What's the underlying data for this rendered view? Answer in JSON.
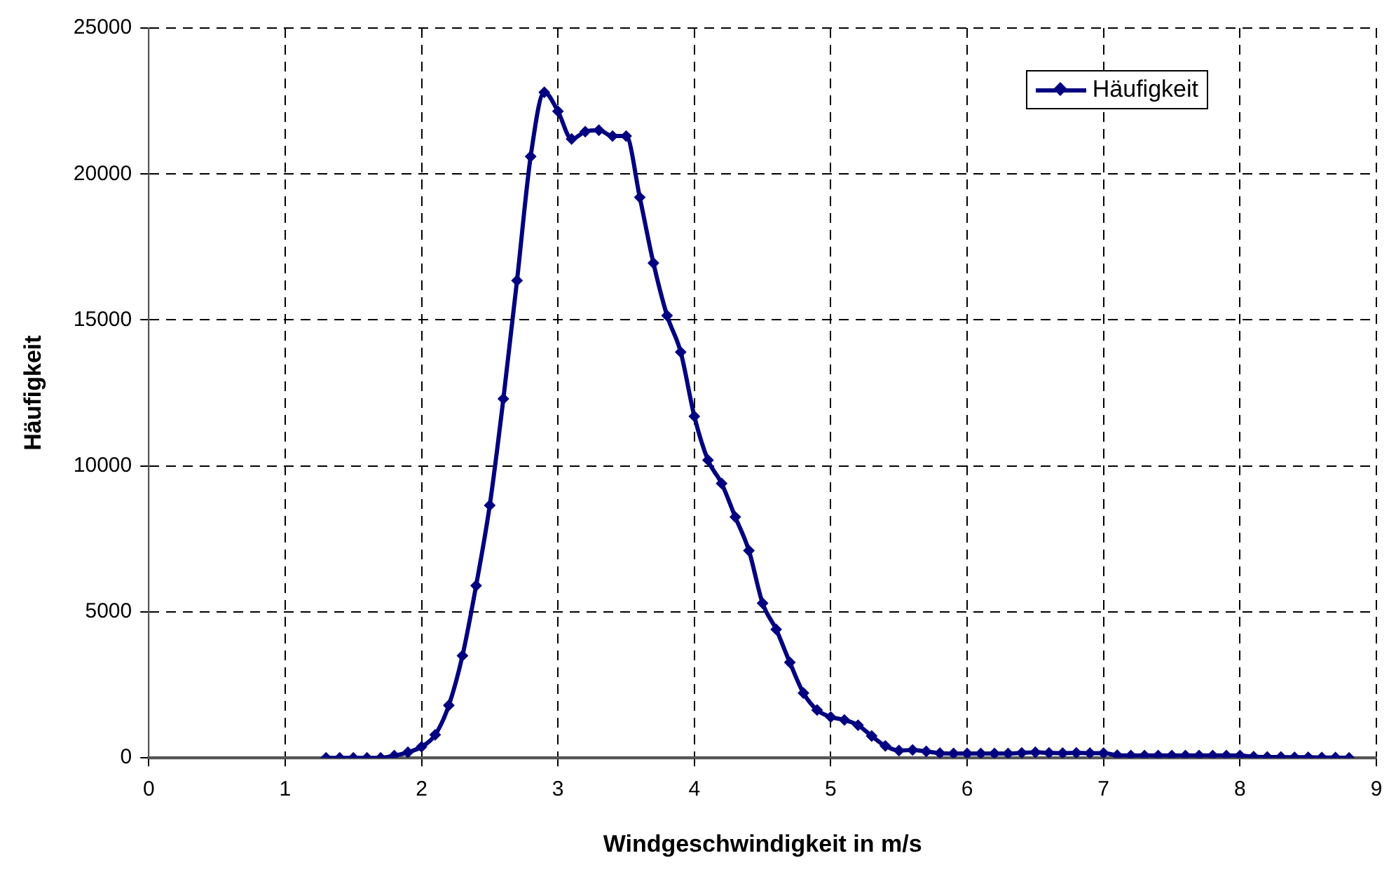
{
  "chart_data": {
    "type": "line",
    "xlabel": "Windgeschwindigkeit in m/s",
    "ylabel": "Häufigkeit",
    "x": [
      1.3,
      1.4,
      1.5,
      1.6,
      1.7,
      1.8,
      1.9,
      2.0,
      2.1,
      2.2,
      2.3,
      2.4,
      2.5,
      2.6,
      2.7,
      2.8,
      2.9,
      3.0,
      3.1,
      3.2,
      3.3,
      3.4,
      3.5,
      3.6,
      3.7,
      3.8,
      3.9,
      4.0,
      4.1,
      4.2,
      4.3,
      4.4,
      4.5,
      4.6,
      4.7,
      4.8,
      4.9,
      5.0,
      5.1,
      5.2,
      5.3,
      5.4,
      5.5,
      5.6,
      5.7,
      5.8,
      5.9,
      6.0,
      6.1,
      6.2,
      6.3,
      6.4,
      6.5,
      6.6,
      6.7,
      6.8,
      6.9,
      7.0,
      7.1,
      7.2,
      7.3,
      7.4,
      7.5,
      7.6,
      7.7,
      7.8,
      7.9,
      8.0,
      8.1,
      8.2,
      8.3,
      8.4,
      8.5,
      8.6,
      8.7,
      8.8
    ],
    "series": [
      {
        "name": "Häufigkeit",
        "color": "#000080",
        "values": [
          0,
          0,
          0,
          0,
          0,
          80,
          190,
          380,
          790,
          1800,
          3500,
          5900,
          8650,
          12300,
          16350,
          20600,
          22800,
          22150,
          21200,
          21450,
          21500,
          21300,
          21300,
          19200,
          16950,
          15150,
          13900,
          11700,
          10200,
          9400,
          8250,
          7100,
          5300,
          4400,
          3270,
          2220,
          1640,
          1400,
          1300,
          1120,
          750,
          410,
          250,
          270,
          220,
          160,
          150,
          150,
          150,
          150,
          150,
          170,
          190,
          170,
          160,
          170,
          160,
          160,
          90,
          80,
          80,
          80,
          80,
          80,
          80,
          80,
          80,
          80,
          40,
          30,
          30,
          20,
          20,
          10,
          10,
          0
        ]
      }
    ],
    "xlim": [
      0,
      9
    ],
    "xticks": [
      0,
      1,
      2,
      3,
      4,
      5,
      6,
      7,
      8,
      9
    ],
    "ylim": [
      0,
      25000
    ],
    "yticks": [
      0,
      5000,
      10000,
      15000,
      20000,
      25000
    ],
    "grid": true,
    "legend": "top right",
    "marker": "diamond",
    "line_style": "solid"
  }
}
